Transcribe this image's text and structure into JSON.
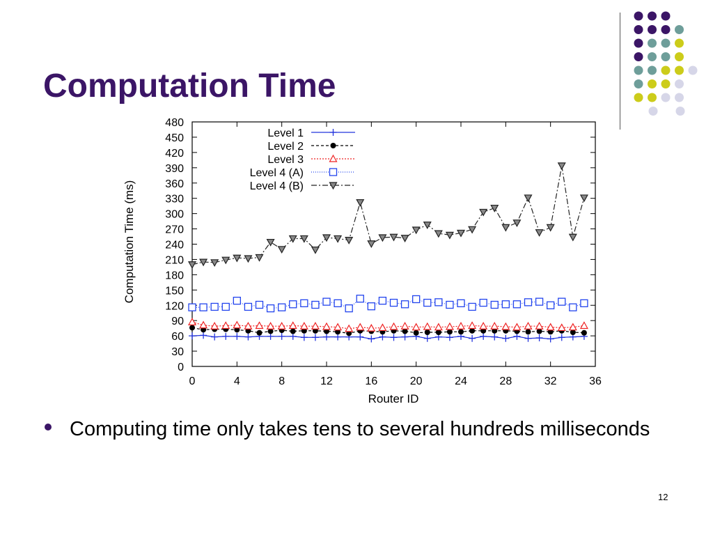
{
  "slide": {
    "title": "Computation Time",
    "bullet": "Computing time only takes tens to several hundreds milliseconds",
    "page_number": "12"
  },
  "decor": {
    "dot_palette": {
      "purple": "#3b1566",
      "teal": "#6e9e9a",
      "yellow": "#cccc1a",
      "lavender": "#d6d6e8"
    },
    "dot_rows": [
      [
        "purple",
        "purple",
        "purple"
      ],
      [
        "purple",
        "purple",
        "purple",
        "teal"
      ],
      [
        "purple",
        "teal",
        "teal",
        "yellow"
      ],
      [
        "purple",
        "teal",
        "teal",
        "yellow"
      ],
      [
        "teal",
        "teal",
        "yellow",
        "yellow",
        "lavender"
      ],
      [
        "teal",
        "yellow",
        "yellow",
        "lavender"
      ],
      [
        "yellow",
        "yellow",
        "lavender",
        "lavender"
      ],
      [
        "lavender",
        "lavender"
      ]
    ]
  },
  "chart_data": {
    "type": "line",
    "xlabel": "Router ID",
    "ylabel": "Computation Time (ms)",
    "xlim": [
      0,
      36
    ],
    "ylim": [
      0,
      480
    ],
    "xticks": [
      0,
      4,
      8,
      12,
      16,
      20,
      24,
      28,
      32,
      36
    ],
    "yticks": [
      0,
      30,
      60,
      90,
      120,
      150,
      180,
      210,
      240,
      270,
      300,
      330,
      360,
      390,
      420,
      450,
      480
    ],
    "legend_position": "top-center",
    "x": [
      0,
      1,
      2,
      3,
      4,
      5,
      6,
      7,
      8,
      9,
      10,
      11,
      12,
      13,
      14,
      15,
      16,
      17,
      18,
      19,
      20,
      21,
      22,
      23,
      24,
      25,
      26,
      27,
      28,
      29,
      30,
      31,
      32,
      33,
      34,
      35
    ],
    "series": [
      {
        "name": "Level 1",
        "color": "#2233dd",
        "marker": "plus",
        "dash": "",
        "values": [
          60,
          61,
          58,
          59,
          59,
          58,
          59,
          59,
          59,
          59,
          57,
          57,
          58,
          58,
          58,
          58,
          54,
          58,
          57,
          58,
          59,
          55,
          58,
          57,
          59,
          55,
          59,
          58,
          55,
          59,
          55,
          56,
          54,
          57,
          58,
          59
        ]
      },
      {
        "name": "Level 2",
        "color": "#000000",
        "marker": "circle",
        "dash": "4,3",
        "values": [
          76,
          72,
          73,
          73,
          72,
          70,
          66,
          69,
          71,
          69,
          70,
          70,
          69,
          68,
          65,
          70,
          69,
          68,
          70,
          69,
          66,
          67,
          67,
          68,
          68,
          70,
          70,
          70,
          70,
          69,
          68,
          69,
          68,
          70,
          67,
          66
        ]
      },
      {
        "name": "Level 3",
        "color": "#ee2222",
        "marker": "triangle",
        "dash": "2,2",
        "values": [
          87,
          81,
          79,
          80,
          81,
          79,
          80,
          79,
          79,
          80,
          79,
          79,
          78,
          77,
          74,
          77,
          75,
          76,
          78,
          79,
          77,
          78,
          77,
          78,
          79,
          80,
          79,
          79,
          78,
          77,
          79,
          79,
          77,
          76,
          77,
          80
        ]
      },
      {
        "name": "Level 4 (A)",
        "color": "#2244ee",
        "marker": "square",
        "dash": "1,2",
        "values": [
          116,
          116,
          117,
          117,
          129,
          117,
          121,
          114,
          116,
          122,
          124,
          121,
          127,
          124,
          114,
          133,
          118,
          129,
          125,
          122,
          132,
          125,
          126,
          121,
          124,
          117,
          125,
          121,
          122,
          122,
          126,
          127,
          120,
          127,
          116,
          124
        ]
      },
      {
        "name": "Level 4 (B)",
        "color": "#222222",
        "marker": "triangle-down",
        "dash": "8,3,2,3",
        "values": [
          200,
          205,
          204,
          209,
          213,
          212,
          214,
          244,
          230,
          251,
          251,
          229,
          253,
          251,
          248,
          322,
          241,
          253,
          254,
          252,
          268,
          278,
          261,
          258,
          262,
          269,
          303,
          311,
          273,
          282,
          331,
          263,
          273,
          394,
          254,
          331
        ]
      }
    ]
  }
}
